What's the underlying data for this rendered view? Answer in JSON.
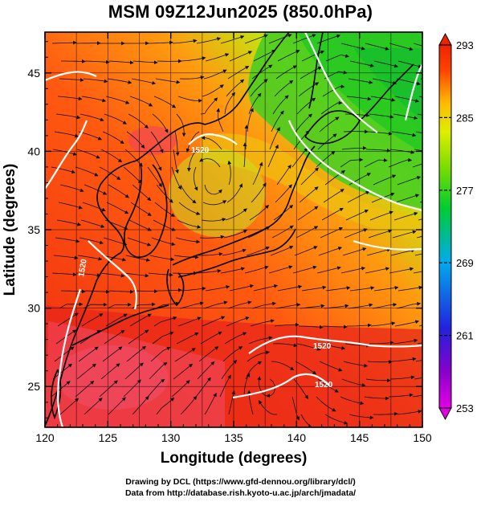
{
  "title": "MSM 09Z12Jun2025 (850.0hPa)",
  "xaxis": {
    "label": "Longitude (degrees)",
    "ticks": [
      "120",
      "125",
      "130",
      "135",
      "140",
      "145",
      "150"
    ],
    "range": [
      120,
      150
    ]
  },
  "yaxis": {
    "label": "Latitude  (degrees)",
    "ticks": [
      "25",
      "30",
      "35",
      "40",
      "45"
    ],
    "range": [
      22.4,
      47.6
    ]
  },
  "colorbar": {
    "ticks": [
      "293",
      "285",
      "277",
      "269",
      "261",
      "253"
    ],
    "range": [
      253,
      293
    ],
    "colors": [
      "#e400e4",
      "#2222dd",
      "#00aaee",
      "#00cc33",
      "#bbee00",
      "#ffcc00",
      "#ff4400",
      "#ee2200"
    ]
  },
  "contour_labels": [
    "1520",
    "1520",
    "1520",
    "1520"
  ],
  "credits": {
    "line1": "Drawing by DCL (https://www.gfd-dennou.org/library/dcl/)",
    "line2": "Data from http://database.rish.kyoto-u.ac.jp/arch/jmadata/"
  }
}
